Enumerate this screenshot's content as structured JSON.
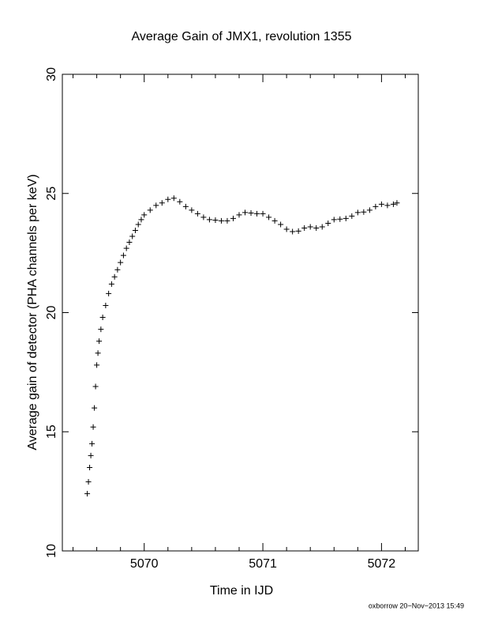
{
  "chart_data": {
    "type": "scatter",
    "title": "Average Gain of JMX1, revolution 1355",
    "x_label": "Time in IJD",
    "y_label": "Average gain of detector (PHA channels per keV)",
    "footer": "oxborrow 20−Nov−2013 15:49",
    "marker": "plus",
    "color": "#000000",
    "x": [
      5069.52,
      5069.53,
      5069.54,
      5069.55,
      5069.56,
      5069.57,
      5069.58,
      5069.59,
      5069.6,
      5069.61,
      5069.62,
      5069.635,
      5069.65,
      5069.675,
      5069.7,
      5069.725,
      5069.75,
      5069.775,
      5069.8,
      5069.825,
      5069.85,
      5069.875,
      5069.9,
      5069.925,
      5069.95,
      5069.975,
      5070.0,
      5070.05,
      5070.1,
      5070.15,
      5070.2,
      5070.25,
      5070.3,
      5070.35,
      5070.4,
      5070.45,
      5070.5,
      5070.55,
      5070.6,
      5070.65,
      5070.7,
      5070.75,
      5070.8,
      5070.85,
      5070.9,
      5070.95,
      5071.0,
      5071.05,
      5071.1,
      5071.15,
      5071.2,
      5071.25,
      5071.3,
      5071.35,
      5071.4,
      5071.45,
      5071.5,
      5071.55,
      5071.6,
      5071.65,
      5071.7,
      5071.75,
      5071.8,
      5071.85,
      5071.9,
      5071.95,
      5072.0,
      5072.05,
      5072.1,
      5072.13
    ],
    "y": [
      12.4,
      12.9,
      13.5,
      14.0,
      14.5,
      15.2,
      16.0,
      16.9,
      17.8,
      18.3,
      18.8,
      19.3,
      19.8,
      20.3,
      20.8,
      21.2,
      21.5,
      21.8,
      22.1,
      22.4,
      22.7,
      22.95,
      23.2,
      23.45,
      23.7,
      23.9,
      24.1,
      24.3,
      24.5,
      24.6,
      24.75,
      24.8,
      24.65,
      24.45,
      24.3,
      24.15,
      24.0,
      23.9,
      23.88,
      23.85,
      23.85,
      23.95,
      24.1,
      24.2,
      24.18,
      24.15,
      24.15,
      24.0,
      23.85,
      23.7,
      23.5,
      23.4,
      23.42,
      23.55,
      23.6,
      23.55,
      23.6,
      23.75,
      23.9,
      23.92,
      23.95,
      24.05,
      24.2,
      24.22,
      24.3,
      24.45,
      24.55,
      24.5,
      24.55,
      24.6
    ],
    "xlim": [
      5069.31,
      5072.31
    ],
    "ylim": [
      10,
      30
    ],
    "xticks": [
      5070,
      5071,
      5072
    ],
    "xminorticks": [
      5069.4,
      5069.6,
      5069.8,
      5070.2,
      5070.4,
      5070.6,
      5070.8,
      5071.2,
      5071.4,
      5071.6,
      5071.8,
      5072.2
    ],
    "yticks": [
      10,
      15,
      20,
      25,
      30
    ]
  }
}
